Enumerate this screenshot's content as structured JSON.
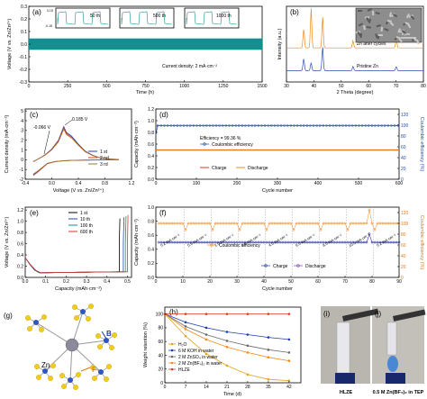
{
  "chart_data": [
    {
      "panel": "(a)",
      "type": "line",
      "xlabel": "Time (h)",
      "ylabel": "Voltage (V vs. Zn/Zn²⁺)",
      "x_ticks": [
        "0",
        "250",
        "500",
        "750",
        "1000",
        "1250",
        "1500"
      ],
      "y_ticks": [
        "-0.3",
        "-0.2",
        "-0.1",
        "0.0",
        "0.1",
        "0.2",
        "0.3"
      ],
      "xlim": [
        0,
        1500
      ],
      "ylim": [
        -0.3,
        0.3
      ],
      "band": {
        "from_x": 0,
        "to_x": 1500,
        "low": -0.045,
        "high": 0.045,
        "color": "#138f8f"
      },
      "annotation": "Current density: 2 mA·cm⁻²",
      "insets": [
        {
          "label": "50 th",
          "y_ticks": [
            "0.15",
            "-0.15"
          ]
        },
        {
          "label": "500 th"
        },
        {
          "label": "1000 th"
        }
      ]
    },
    {
      "panel": "(b)",
      "type": "line",
      "xlabel": "2 Theta (degree)",
      "ylabel": "Intensity (a.u.)",
      "x_ticks": [
        "30",
        "40",
        "50",
        "60",
        "70",
        "80"
      ],
      "xlim": [
        30,
        80
      ],
      "series": [
        {
          "name": "Zn after cycles",
          "color": "#f08a1c",
          "peaks": [
            {
              "x": 36.3,
              "h": 0.45
            },
            {
              "x": 39.0,
              "h": 0.95
            },
            {
              "x": 43.2,
              "h": 0.75
            },
            {
              "x": 54.3,
              "h": 0.18
            },
            {
              "x": 70.1,
              "h": 0.22
            }
          ]
        },
        {
          "name": "Pristine Zn",
          "color": "#2b4fb0",
          "peaks": [
            {
              "x": 36.3,
              "h": 0.45
            },
            {
              "x": 39.0,
              "h": 0.3
            },
            {
              "x": 43.2,
              "h": 0.9
            },
            {
              "x": 54.3,
              "h": 0.16
            },
            {
              "x": 70.1,
              "h": 0.15
            }
          ]
        }
      ],
      "inset_label": "5 μm"
    },
    {
      "panel": "(c)",
      "type": "line",
      "xlabel": "Voltage (V vs. Zn/Zn²⁺)",
      "ylabel": "Current density (mA·cm⁻²)",
      "x_ticks": [
        "-0.4",
        "0.0",
        "0.4",
        "0.8",
        "1.2"
      ],
      "y_ticks": [
        "-2",
        "-1",
        "0",
        "1",
        "2",
        "3",
        "4",
        "5"
      ],
      "xlim": [
        -0.4,
        1.2
      ],
      "ylim": [
        -2,
        5.2
      ],
      "annotations": [
        "-0.066 V",
        "0.185 V"
      ],
      "series": [
        {
          "name": "1 st",
          "color": "#1f3fa8"
        },
        {
          "name": "2 nd",
          "color": "#e0362e"
        },
        {
          "name": "3 rd",
          "color": "#a6742a"
        }
      ],
      "curve": {
        "upper": [
          [
            -0.28,
            -0.2
          ],
          [
            -0.2,
            0.1
          ],
          [
            -0.1,
            0.5
          ],
          [
            0.0,
            1.1
          ],
          [
            0.1,
            2.0
          ],
          [
            0.18,
            3.4
          ],
          [
            0.22,
            2.8
          ],
          [
            0.3,
            2.4
          ],
          [
            0.4,
            1.6
          ],
          [
            0.5,
            0.9
          ],
          [
            0.6,
            0.5
          ],
          [
            0.7,
            0.25
          ],
          [
            0.8,
            0.12
          ],
          [
            0.9,
            0.06
          ],
          [
            1.0,
            0.03
          ]
        ],
        "lower": [
          [
            1.0,
            0.0
          ],
          [
            0.8,
            -0.02
          ],
          [
            0.6,
            -0.03
          ],
          [
            0.4,
            -0.05
          ],
          [
            0.2,
            -0.1
          ],
          [
            0.05,
            -0.2
          ],
          [
            -0.066,
            -0.4
          ],
          [
            -0.15,
            -0.9
          ],
          [
            -0.22,
            -1.3
          ],
          [
            -0.28,
            -1.6
          ]
        ]
      }
    },
    {
      "panel": "(d)",
      "type": "line",
      "xlabel": "Cycle number",
      "ylabel": "Capacity (mAh·cm⁻²)",
      "y2label": "Coulombic efficiency (%)",
      "x_ticks": [
        "0",
        "100",
        "200",
        "300",
        "400",
        "500",
        "600"
      ],
      "y_ticks": [
        "0.0",
        "0.2",
        "0.4",
        "0.6",
        "0.8",
        "1.0",
        "1.2"
      ],
      "y2_ticks": [
        "0",
        "20",
        "40",
        "60",
        "80",
        "100",
        "120"
      ],
      "xlim": [
        0,
        600
      ],
      "ylim": [
        0,
        1.2
      ],
      "y2lim": [
        0,
        130
      ],
      "annotation": "Efficiency = 99.36 %",
      "series": [
        {
          "name": "Coulombic efficiency",
          "color": "#1f4aa8",
          "value": 99.36,
          "axis": "y2"
        },
        {
          "name": "Charge",
          "color": "#e0362e",
          "value": 0.5
        },
        {
          "name": "Discharge",
          "color": "#f08a1c",
          "value": 0.5
        }
      ]
    },
    {
      "panel": "(e)",
      "type": "line",
      "xlabel": "Capacity (mAh·cm⁻²)",
      "ylabel": "Voltage (V vs. Zn/Zn²⁺)",
      "x_ticks": [
        "0.0",
        "0.1",
        "0.2",
        "0.3",
        "0.4",
        "0.5"
      ],
      "y_ticks": [
        "0.0",
        "0.2",
        "0.4",
        "0.6",
        "0.8",
        "1.0",
        "1.2"
      ],
      "xlim": [
        0,
        0.52
      ],
      "ylim": [
        0,
        1.25
      ],
      "series": [
        {
          "name": "1 st",
          "color": "#000000",
          "end": 0.46
        },
        {
          "name": "10 th",
          "color": "#1f4aa8",
          "end": 0.48
        },
        {
          "name": "100 th",
          "color": "#138f8f",
          "end": 0.49
        },
        {
          "name": "600 th",
          "color": "#e0362e",
          "end": 0.5
        }
      ]
    },
    {
      "panel": "(f)",
      "type": "line",
      "xlabel": "Cycle number",
      "ylabel": "Capacity (mAh·cm⁻²)",
      "y2label": "Coulombic efficiency (%)",
      "x_ticks": [
        "0",
        "10",
        "20",
        "30",
        "40",
        "50",
        "60",
        "70",
        "80",
        "90"
      ],
      "y_ticks": [
        "0.0",
        "0.2",
        "0.4",
        "0.6",
        "0.8",
        "1.0"
      ],
      "y2_ticks": [
        "0",
        "20",
        "40",
        "60",
        "80",
        "100",
        "120"
      ],
      "xlim": [
        0,
        90
      ],
      "ylim": [
        0,
        1.0
      ],
      "y2lim": [
        0,
        130
      ],
      "rate_labels": [
        "0.2 mA·cm⁻²",
        "0.5 mA·cm⁻²",
        "1.0 mA·cm⁻²",
        "2.0 mA·cm⁻²",
        "4.0 mA·cm⁻²",
        "6.0 mA·cm⁻²",
        "8.0 mA·cm⁻²",
        "10.0 mA·cm⁻²",
        "0.2 mA·cm⁻²"
      ],
      "series": [
        {
          "name": "Coulombic efficiency",
          "color": "#f08a1c",
          "value": 100,
          "axis": "y2"
        },
        {
          "name": "Charge",
          "color": "#1f3fa8",
          "value": 0.5
        },
        {
          "name": "Discharge",
          "color": "#7a3fb8",
          "value": 0.5
        }
      ]
    },
    {
      "panel": "(g)",
      "type": "diagram",
      "labels": [
        "Zn",
        "B",
        "F"
      ]
    },
    {
      "panel": "(h)",
      "type": "line",
      "xlabel": "Time (d)",
      "ylabel": "Weight retention (%)",
      "x_ticks": [
        "0",
        "7",
        "14",
        "21",
        "28",
        "35",
        "42"
      ],
      "y_ticks": [
        "0",
        "20",
        "40",
        "60",
        "80",
        "100"
      ],
      "xlim": [
        0,
        46
      ],
      "ylim": [
        0,
        110
      ],
      "x": [
        0,
        7,
        14,
        21,
        28,
        35,
        42
      ],
      "series": [
        {
          "name": "H₂O",
          "color": "#e0a51c",
          "values": [
            100,
            68,
            42,
            25,
            12,
            5,
            3
          ]
        },
        {
          "name": "6 M KOH in water",
          "color": "#1f3fa8",
          "values": [
            100,
            88,
            80,
            74,
            70,
            66,
            63
          ]
        },
        {
          "name": "2 M ZnSO₄ in water",
          "color": "#6a6a6a",
          "values": [
            100,
            82,
            70,
            61,
            54,
            48,
            44
          ]
        },
        {
          "name": "2 M Zn(BF₄)₂ in water",
          "color": "#f08a1c",
          "values": [
            100,
            78,
            63,
            52,
            44,
            37,
            32
          ]
        },
        {
          "name": "HLZE",
          "color": "#e0362e",
          "values": [
            100,
            100,
            100,
            100,
            100,
            100,
            100
          ]
        }
      ]
    },
    {
      "panel": "(i)",
      "type": "photo",
      "caption": "HLZE"
    },
    {
      "panel": "(j)",
      "type": "photo",
      "caption": "0.5 M Zn(BF₄)₂ in TEP"
    }
  ]
}
